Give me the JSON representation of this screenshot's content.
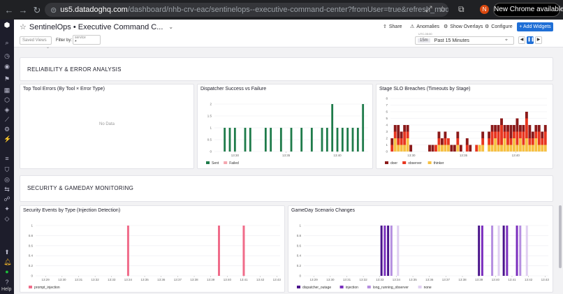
{
  "browser": {
    "url_host": "us5.datadoghq.com",
    "url_path": "/dashboard/nhb-crv-eac/sentinelops--executive-command-center?fromUser=true&refresh_mode=sliding&storage=h...",
    "avatar_letter": "N",
    "update_label": "New Chrome available"
  },
  "header": {
    "title": "SentinelOps • Executive Command C...",
    "share": "Share",
    "anomalies": "Anomalies",
    "overlays": "Show Overlays",
    "configure": "Configure",
    "add_widgets": "+ Add Widgets",
    "saved_views": "Saved Views",
    "filter_by": "Filter by:",
    "service_label": "service",
    "service_value": "*",
    "utc_label": "UTC-05:00",
    "time_badge": "15m",
    "time_range": "Past 15 Minutes"
  },
  "sidebar": {
    "help": "Help"
  },
  "groups": {
    "reliability": "RELIABILITY & ERROR ANALYSIS",
    "security": "SECURITY & GAMEDAY MONITORING"
  },
  "widgets": {
    "tool_errors": {
      "title": "Top Tool Errors (By Tool × Error Type)",
      "no_data": "No Data"
    },
    "dispatcher": {
      "title": "Dispatcher Success vs Failure"
    },
    "slo": {
      "title": "Stage SLO Breaches (Timeouts by Stage)"
    },
    "security": {
      "title": "Security Events by Type (Injection Detection)"
    },
    "gameday": {
      "title": "GameDay Scenario Changes"
    }
  },
  "chart_data": [
    {
      "type": "bar",
      "title": "Dispatcher Success vs Failure",
      "y_ticks": [
        "0",
        "0.5",
        "1",
        "1.5",
        "2"
      ],
      "ylim": [
        0,
        2
      ],
      "x_ticks": [
        "13:30",
        "13:35",
        "13:40"
      ],
      "xlim": [
        "13:28",
        "13:43"
      ],
      "series": [
        {
          "name": "Sent",
          "color": "#1e7b4a",
          "points": [
            [
              "13:29",
              1
            ],
            [
              "13:29.5",
              1
            ],
            [
              "13:30",
              1
            ],
            [
              "13:31",
              1
            ],
            [
              "13:31.5",
              1
            ],
            [
              "13:33",
              1
            ],
            [
              "13:33.5",
              1
            ],
            [
              "13:34.5",
              1
            ],
            [
              "13:35.5",
              1
            ],
            [
              "13:36.5",
              1
            ],
            [
              "13:37.5",
              1
            ],
            [
              "13:38.5",
              1
            ],
            [
              "13:39",
              1
            ],
            [
              "13:39.5",
              2
            ],
            [
              "13:40",
              1
            ],
            [
              "13:40.5",
              1
            ],
            [
              "13:41",
              1
            ],
            [
              "13:41.5",
              1
            ],
            [
              "13:42",
              1
            ],
            [
              "13:42.5",
              2
            ]
          ]
        },
        {
          "name": "Failed",
          "color": "#f4a7b0",
          "points": []
        }
      ]
    },
    {
      "type": "bar",
      "title": "Stage SLO Breaches (Timeouts by Stage)",
      "y_ticks": [
        "0",
        "1",
        "2",
        "3",
        "4",
        "5",
        "6",
        "7",
        "8"
      ],
      "ylim": [
        0,
        8
      ],
      "x_ticks": [
        "13:30",
        "13:35",
        "13:40"
      ],
      "stacked": true,
      "series": [
        {
          "name": "doer",
          "color": "#8b1a1a"
        },
        {
          "name": "observer",
          "color": "#e8361f"
        },
        {
          "name": "thinker",
          "color": "#f6c042"
        }
      ],
      "stacks": [
        [
          1,
          1,
          0
        ],
        [
          1,
          1,
          2
        ],
        [
          2,
          1,
          1
        ],
        [
          1,
          1,
          1
        ],
        [
          1,
          2,
          1
        ],
        [
          1,
          1,
          2
        ],
        [
          1,
          0,
          0
        ],
        [
          0,
          0,
          0
        ],
        [
          0,
          0,
          0
        ],
        [
          0,
          0,
          0
        ],
        [
          0,
          0,
          0
        ],
        [
          0,
          0,
          0
        ],
        [
          1,
          0,
          0
        ],
        [
          1,
          0,
          0
        ],
        [
          0,
          1,
          0
        ],
        [
          1,
          1,
          1
        ],
        [
          1,
          0,
          1
        ],
        [
          1,
          1,
          1
        ],
        [
          0,
          1,
          1
        ],
        [
          1,
          0,
          0
        ],
        [
          1,
          0,
          0
        ],
        [
          1,
          1,
          1
        ],
        [
          1,
          0,
          0
        ],
        [
          0,
          0,
          0
        ],
        [
          1,
          1,
          0
        ],
        [
          1,
          0,
          0
        ],
        [
          0,
          0,
          0
        ],
        [
          0,
          1,
          0
        ],
        [
          0,
          0,
          1
        ],
        [
          1,
          1,
          1
        ],
        [
          0,
          0,
          0
        ],
        [
          1,
          1,
          1
        ],
        [
          1,
          2,
          1
        ],
        [
          1,
          1,
          2
        ],
        [
          1,
          2,
          1
        ],
        [
          1,
          3,
          1
        ],
        [
          1,
          1,
          2
        ],
        [
          1,
          2,
          1
        ],
        [
          2,
          1,
          1
        ],
        [
          1,
          1,
          2
        ],
        [
          2,
          2,
          1
        ],
        [
          1,
          1,
          2
        ],
        [
          1,
          2,
          1
        ],
        [
          1,
          3,
          2
        ],
        [
          2,
          1,
          1
        ],
        [
          1,
          1,
          1
        ],
        [
          1,
          1,
          2
        ],
        [
          1,
          2,
          1
        ],
        [
          1,
          1,
          1
        ],
        [
          1,
          2,
          1
        ]
      ]
    },
    {
      "type": "bar",
      "title": "Security Events by Type (Injection Detection)",
      "y_ticks": [
        "0",
        "0.2",
        "0.4",
        "0.6",
        "0.8",
        "1"
      ],
      "ylim": [
        0,
        1
      ],
      "x_ticks": [
        "13:29",
        "13:30",
        "13:31",
        "13:32",
        "13:33",
        "13:34",
        "13:35",
        "13:36",
        "13:37",
        "13:38",
        "13:39",
        "13:40",
        "13:41",
        "13:42",
        "13:43"
      ],
      "series": [
        {
          "name": "prompt_injection",
          "color": "#f06c8a",
          "points": [
            [
              "13:34",
              1
            ],
            [
              "13:39.5",
              1
            ],
            [
              "13:41",
              1
            ]
          ]
        }
      ]
    },
    {
      "type": "bar",
      "title": "GameDay Scenario Changes",
      "y_ticks": [
        "0",
        "0.2",
        "0.4",
        "0.6",
        "0.8",
        "1"
      ],
      "ylim": [
        0,
        1
      ],
      "x_ticks": [
        "13:29",
        "13:30",
        "13:31",
        "13:32",
        "13:33",
        "13:34",
        "13:35",
        "13:36",
        "13:37",
        "13:38",
        "13:39",
        "13:40",
        "13:41",
        "13:42",
        "13:43"
      ],
      "series": [
        {
          "name": "dispatcher_outage",
          "color": "#4a148c",
          "points": [
            [
              "13:33.1",
              1
            ],
            [
              "13:33.5",
              1
            ],
            [
              "13:39",
              1
            ],
            [
              "13:40.5",
              1
            ]
          ]
        },
        {
          "name": "injection",
          "color": "#7b2fbe",
          "points": [
            [
              "13:33.3",
              1
            ],
            [
              "13:39.2",
              1
            ],
            [
              "13:40.7",
              1
            ],
            [
              "13:41.3",
              1
            ]
          ]
        },
        {
          "name": "long_running_observer",
          "color": "#b58ee0",
          "points": [
            [
              "13:33.7",
              1
            ],
            [
              "13:39.8",
              1
            ],
            [
              "13:41.5",
              1
            ]
          ]
        },
        {
          "name": "none",
          "color": "#e0cff2",
          "points": [
            [
              "13:34.1",
              1
            ],
            [
              "13:40.2",
              1
            ],
            [
              "13:41.9",
              1
            ]
          ]
        }
      ]
    }
  ]
}
